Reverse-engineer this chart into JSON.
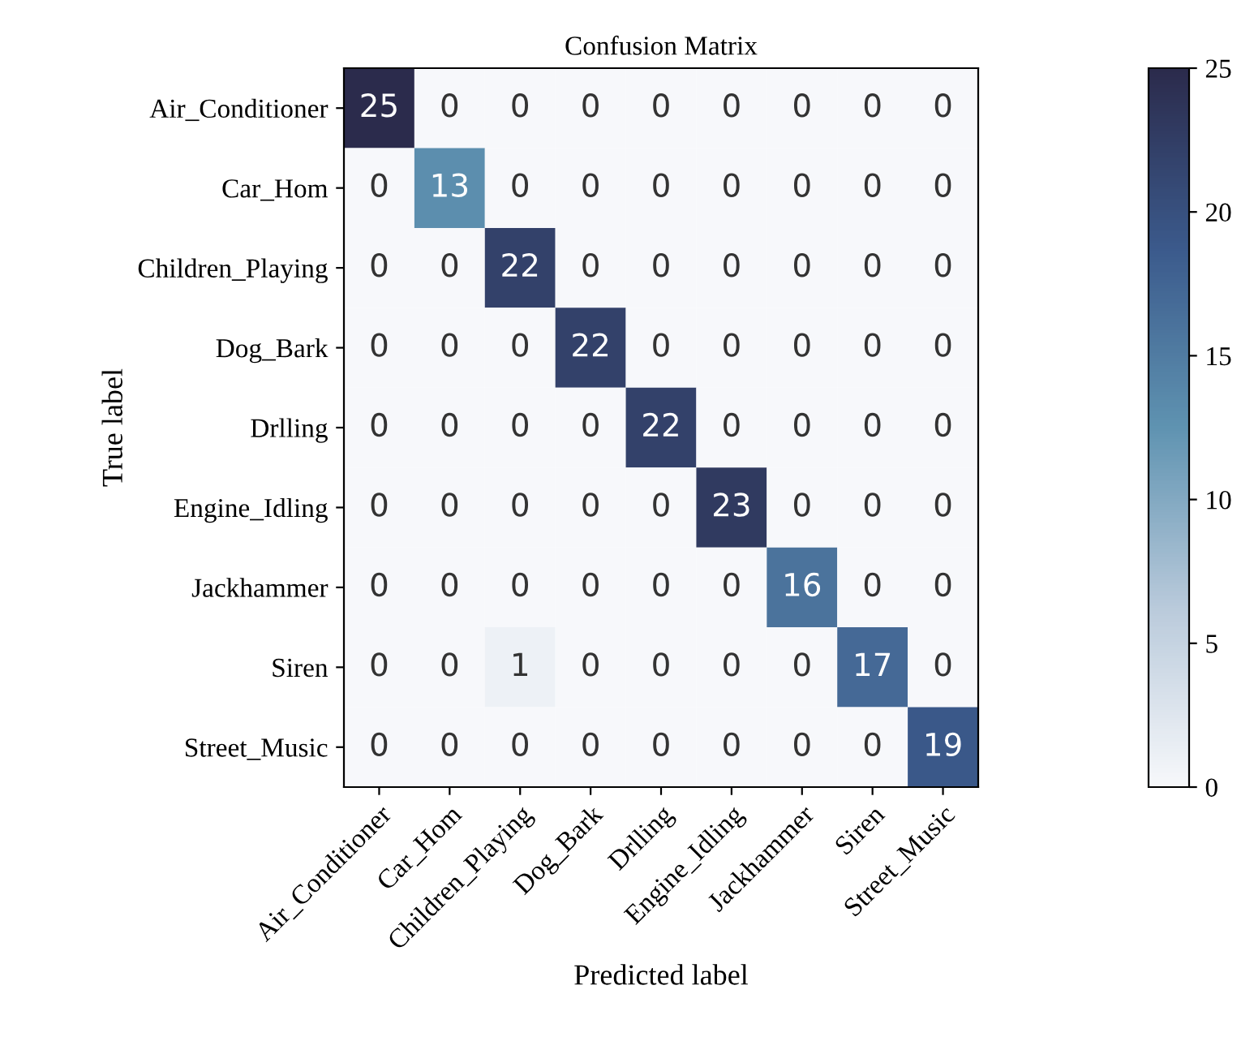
{
  "chart_data": {
    "type": "heatmap",
    "title": "Confusion Matrix",
    "xlabel": "Predicted label",
    "ylabel": "True label",
    "categories": [
      "Air_Conditioner",
      "Car_Hom",
      "Children_Playing",
      "Dog_Bark",
      "Drlling",
      "Engine_Idling",
      "Jackhammer",
      "Siren",
      "Street_Music"
    ],
    "y_categories": [
      "Air_Conditioner",
      "Car_Hom",
      "Children_Playing",
      "Dog_Bark",
      "Drlling",
      "Engine_Idling",
      "Jackhammer",
      "Siren",
      "Street_Music"
    ],
    "cells": [
      [
        25,
        0,
        0,
        0,
        0,
        0,
        0,
        0,
        0
      ],
      [
        0,
        13,
        0,
        0,
        0,
        0,
        0,
        0,
        0
      ],
      [
        0,
        0,
        22,
        0,
        0,
        0,
        0,
        0,
        0
      ],
      [
        0,
        0,
        0,
        22,
        0,
        0,
        0,
        0,
        0
      ],
      [
        0,
        0,
        0,
        0,
        22,
        0,
        0,
        0,
        0
      ],
      [
        0,
        0,
        0,
        0,
        0,
        23,
        0,
        0,
        0
      ],
      [
        0,
        0,
        0,
        0,
        0,
        0,
        16,
        0,
        0
      ],
      [
        0,
        0,
        1,
        0,
        0,
        0,
        0,
        17,
        0
      ],
      [
        0,
        0,
        0,
        0,
        0,
        0,
        0,
        0,
        19
      ]
    ],
    "clim": [
      0,
      25
    ],
    "cticks": [
      0,
      5,
      10,
      15,
      20,
      25
    ],
    "data_labels": true
  }
}
